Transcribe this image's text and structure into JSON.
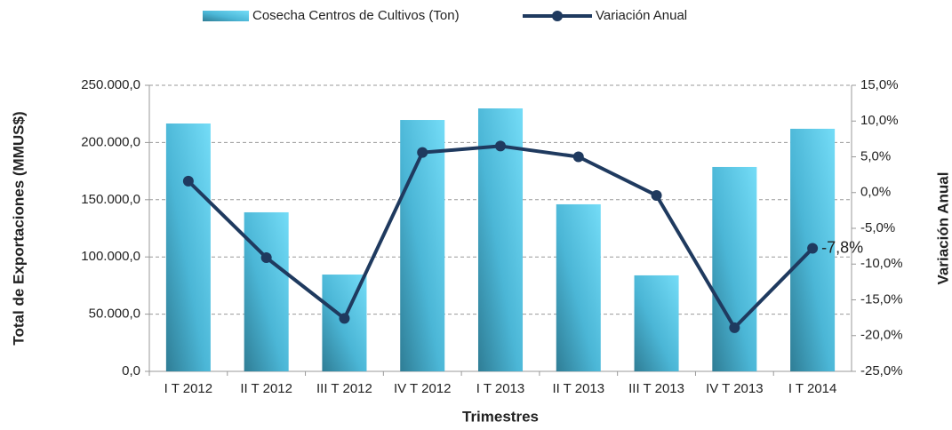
{
  "chart_data": {
    "type": "bar_line",
    "categories": [
      "I T 2012",
      "II T 2012",
      "III T 2012",
      "IV T 2012",
      "I T 2013",
      "II T 2013",
      "III T 2013",
      "IV T 2013",
      "I T 2014"
    ],
    "series": [
      {
        "name": "Cosecha Centros de Cultivos (Ton)",
        "type": "bar",
        "color": "#5cc8e8",
        "values": [
          216600,
          139000,
          84600,
          219700,
          229800,
          146000,
          83900,
          178600,
          212000
        ]
      },
      {
        "name": "Variación Anual",
        "type": "line",
        "axis": "y2",
        "color": "#1f3a5f",
        "values": [
          1.6,
          -9.1,
          -17.6,
          5.6,
          6.5,
          5.0,
          -0.4,
          -18.9,
          -7.8
        ],
        "value_labels": [
          null,
          null,
          null,
          null,
          null,
          null,
          null,
          null,
          "-7,8%"
        ]
      }
    ],
    "xlabel": "Trimestres",
    "ylabel": "Total de Exportaciones (MMUS$)",
    "y2label": "Variación Anual",
    "ylim": [
      0,
      250000
    ],
    "yticks": [
      {
        "value": 0,
        "label": "0,0"
      },
      {
        "value": 50000,
        "label": "50.000,0"
      },
      {
        "value": 100000,
        "label": "100.000,0"
      },
      {
        "value": 150000,
        "label": "150.000,0"
      },
      {
        "value": 200000,
        "label": "200.000,0"
      },
      {
        "value": 250000,
        "label": "250.000,0"
      }
    ],
    "y2lim": [
      -25,
      15
    ],
    "y2ticks": [
      {
        "value": -25,
        "label": "-25,0%"
      },
      {
        "value": -20,
        "label": "-20,0%"
      },
      {
        "value": -15,
        "label": "-15,0%"
      },
      {
        "value": -10,
        "label": "-10,0%"
      },
      {
        "value": -5,
        "label": "-5,0%"
      },
      {
        "value": 0,
        "label": "0,0%"
      },
      {
        "value": 5,
        "label": "5,0%"
      },
      {
        "value": 10,
        "label": "10,0%"
      },
      {
        "value": 15,
        "label": "15,0%"
      }
    ],
    "grid": true,
    "legend": "top"
  }
}
